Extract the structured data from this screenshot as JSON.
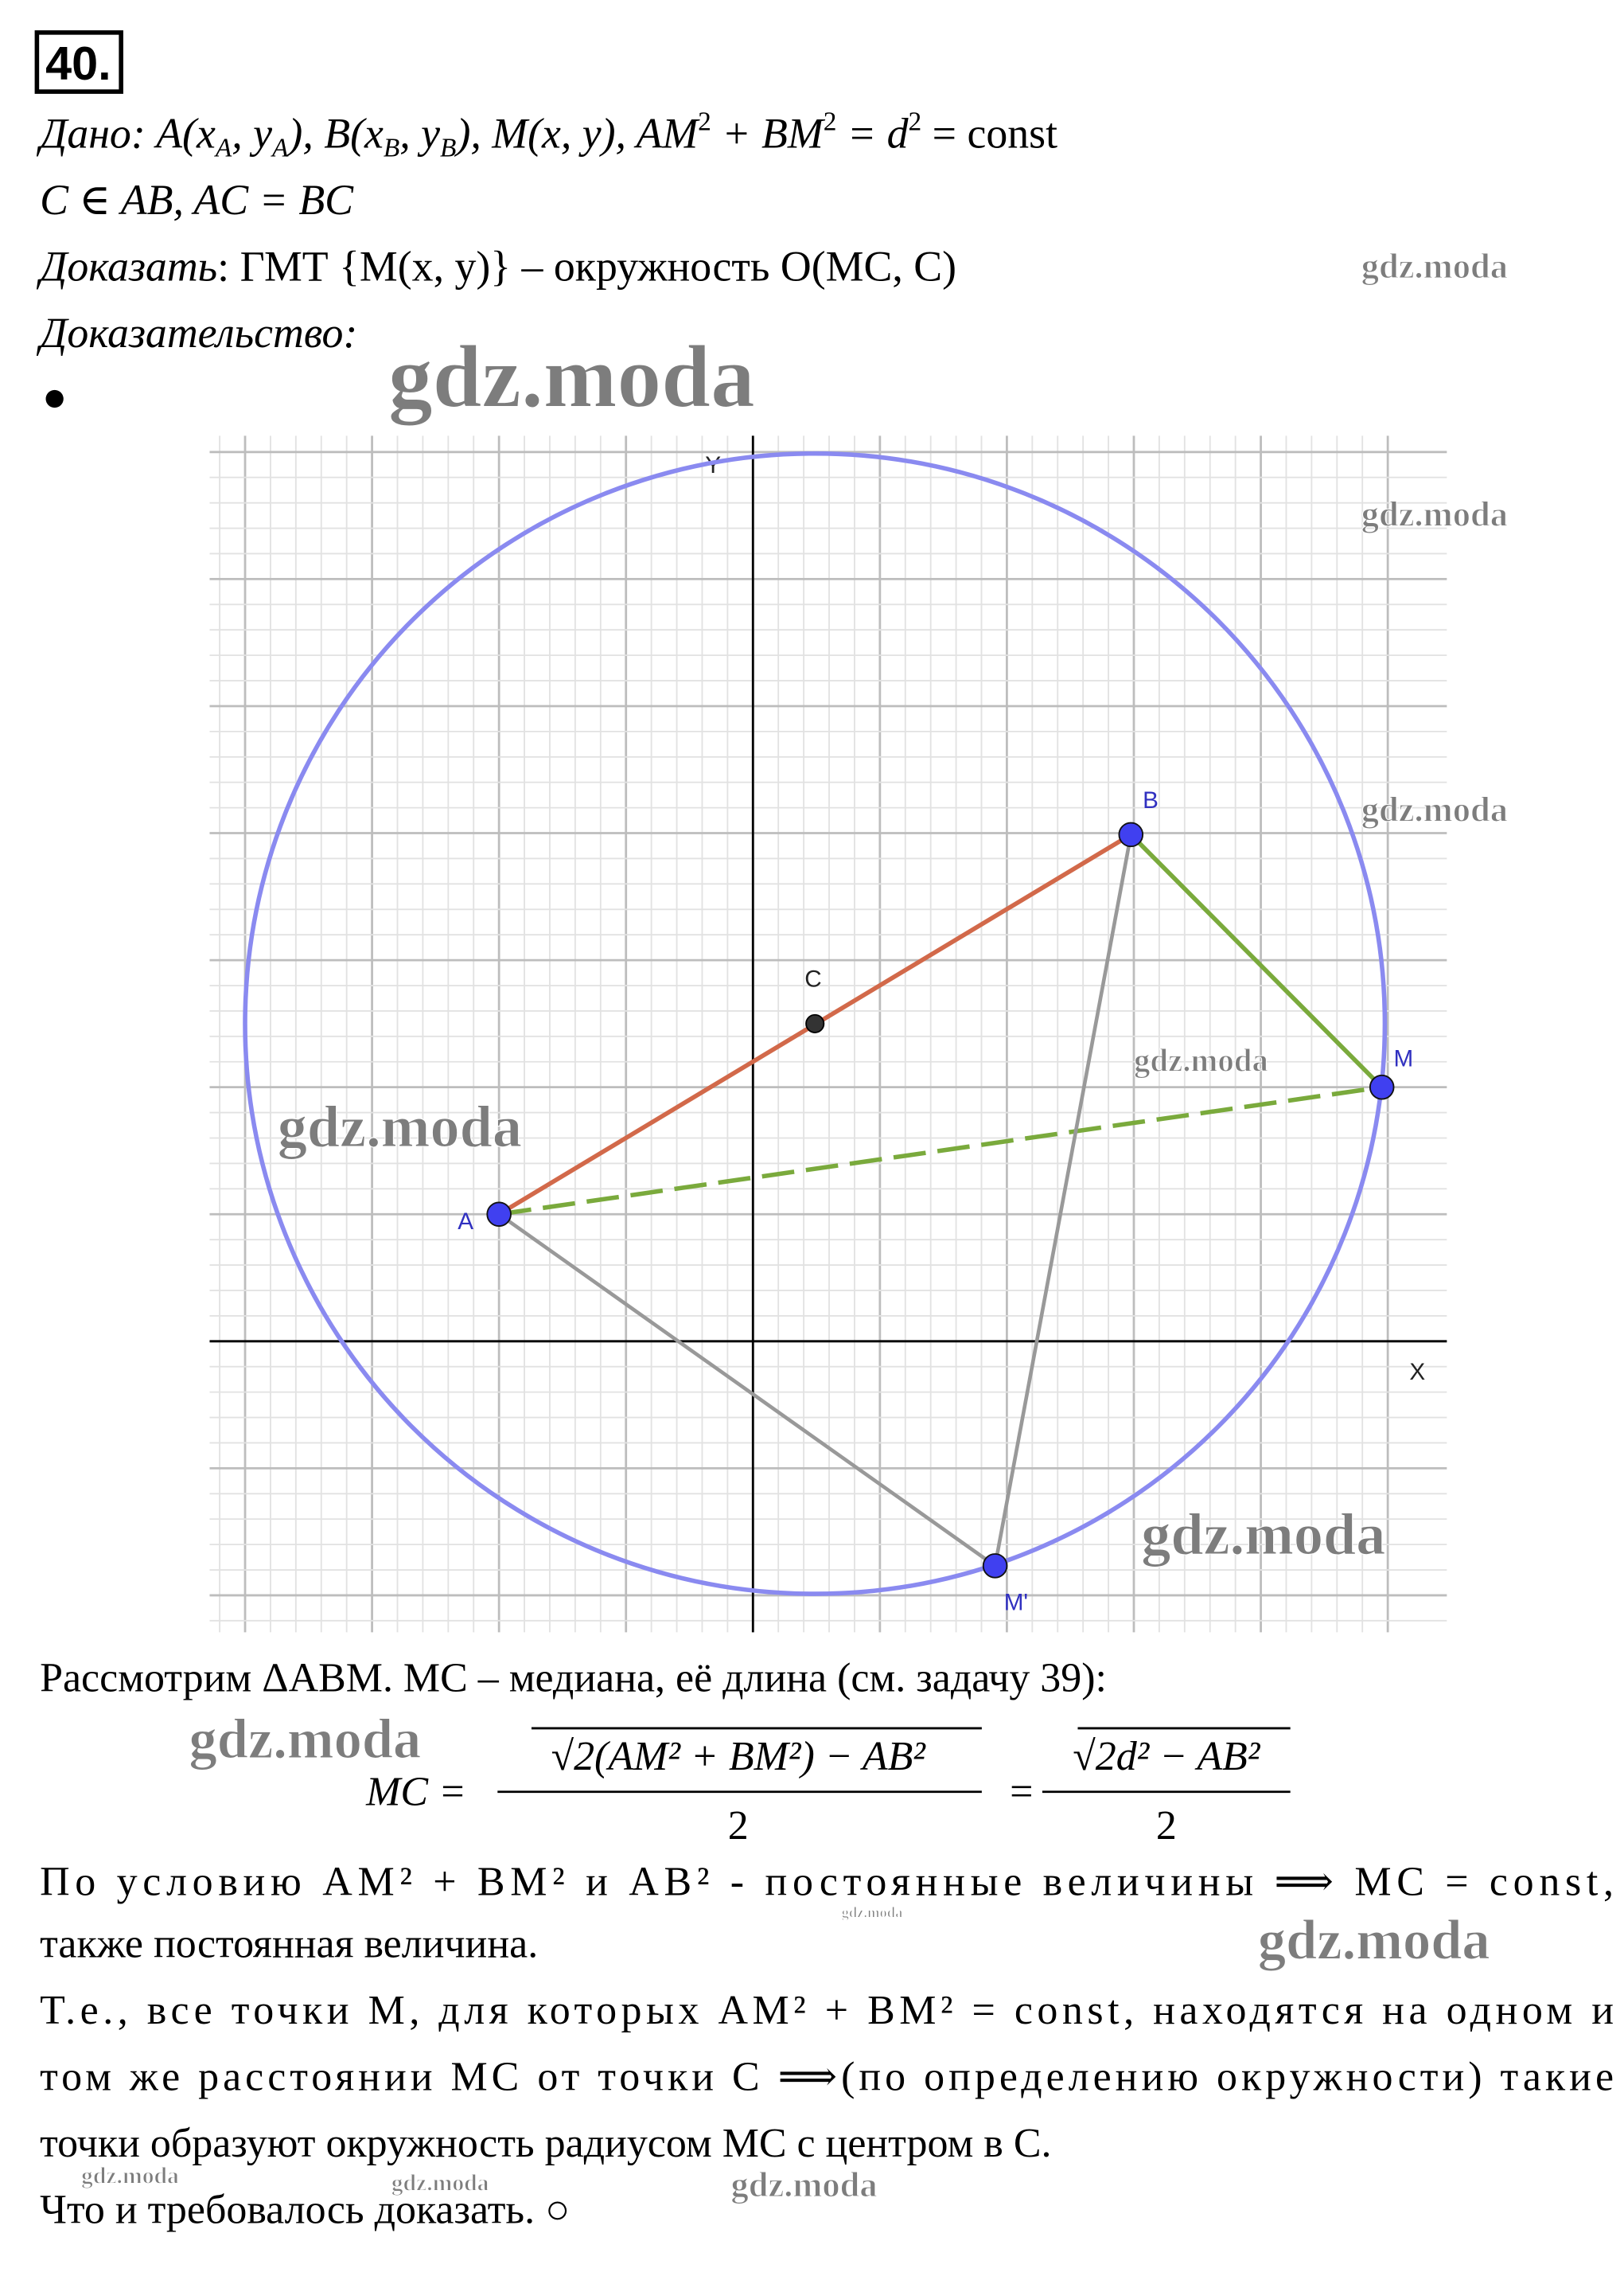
{
  "header": {
    "number": "40."
  },
  "given": {
    "label": "Дано",
    "parts": [
      ": A(x",
      "A",
      ", y",
      "A",
      "), B(x",
      "B",
      ", y",
      "B",
      "), M(x, y),  AM",
      "2",
      " + BM",
      "2",
      " = d",
      "2",
      " = const"
    ],
    "line2": "C ∈ AB, AC = BC"
  },
  "prove": {
    "label": "Доказать",
    "text": ": ГМТ {M(x, y)} – окружность O(MC, C)"
  },
  "proof_label": "Доказательство:",
  "diagram": {
    "axes": {
      "x": "X",
      "y": "Y"
    },
    "points": {
      "A": "A",
      "B": "B",
      "C": "C",
      "M": "M",
      "M_prime": "M'"
    }
  },
  "body": {
    "intro": "Рассмотрим ΔABM. MC – медиана, её длина (см. задачу 39):",
    "formula": {
      "lhs": "MC =",
      "num1": "√2(AM² + BM²) − AB²",
      "den1": "2",
      "eq": "=",
      "num2": "√2d² − AB²",
      "den2": "2"
    },
    "lines": [
      "По условию AM² + BM² и AB² - постоянные величины ⟹ MC = const,",
      "также постоянная величина.",
      "Т.е., все точки M, для которых AM² + BM² = const, находятся на одном и",
      "том же расстоянии MC от точки C ⟹(по определению окружности) такие",
      "точки образуют окружность радиусом MC с центром в C.",
      "Что и требовалось доказать. ○"
    ]
  },
  "watermark": "gdz.moda"
}
